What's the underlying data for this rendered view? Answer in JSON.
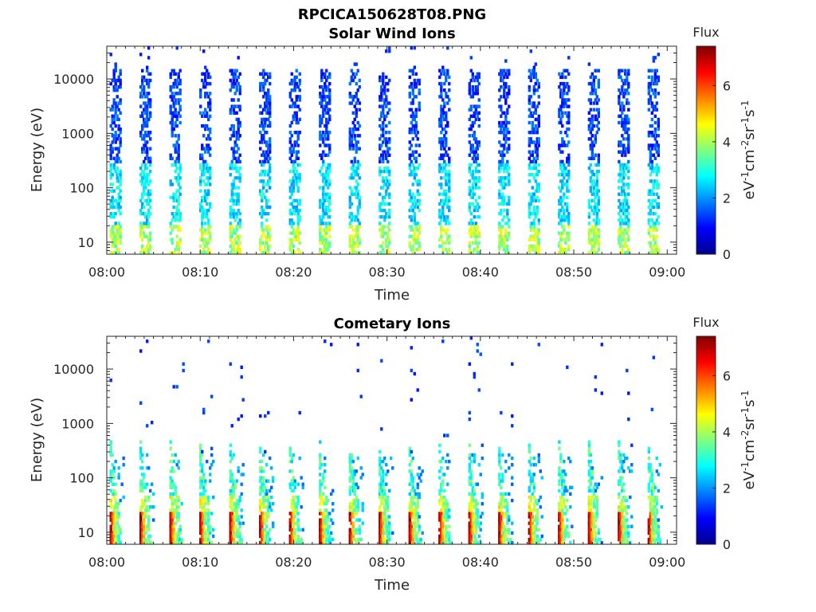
{
  "figure": {
    "title": "RPCICA150628T08.PNG"
  },
  "colorbar": {
    "title": "Flux",
    "label": "eV-1cm-2sr-1s-1",
    "label_parts": [
      {
        "t": "eV",
        "sup": false
      },
      {
        "t": "-1",
        "sup": true
      },
      {
        "t": "cm",
        "sup": false
      },
      {
        "t": "-2",
        "sup": true
      },
      {
        "t": "sr",
        "sup": false
      },
      {
        "t": "-1",
        "sup": true
      },
      {
        "t": "s",
        "sup": false
      },
      {
        "t": "-1",
        "sup": true
      }
    ],
    "range": [
      0,
      7.4
    ],
    "ticks": [
      "0",
      "2",
      "4",
      "6"
    ],
    "colormap": "jet"
  },
  "chart_data": [
    {
      "type": "heatmap",
      "title": "Solar Wind Ions",
      "xlabel": "Time",
      "ylabel": "Energy (eV)",
      "x_ticks": [
        "08:00",
        "08:10",
        "08:20",
        "08:30",
        "08:40",
        "08:50",
        "09:00"
      ],
      "y_ticks": [
        "10",
        "100",
        "1000",
        "10000"
      ],
      "y_scale": "log",
      "ylim_eV": [
        6,
        40000
      ],
      "xlim_min": [
        0,
        61
      ],
      "pattern": "solar_wind",
      "scan_period_min": 3.2,
      "scan_start_min": 0.3,
      "scans": 19,
      "value_summary": "periodic vertical bands; flux 4-5 near 6-20 eV, 2-3 at 20-300 eV, 1-2 at 300-15000 eV"
    },
    {
      "type": "heatmap",
      "title": "Cometary Ions",
      "xlabel": "Time",
      "ylabel": "Energy (eV)",
      "x_ticks": [
        "08:00",
        "08:10",
        "08:20",
        "08:30",
        "08:40",
        "08:50",
        "09:00"
      ],
      "y_ticks": [
        "10",
        "100",
        "1000",
        "10000"
      ],
      "y_scale": "log",
      "ylim_eV": [
        6,
        40000
      ],
      "xlim_min": [
        0,
        61
      ],
      "pattern": "cometary",
      "scan_period_min": 3.2,
      "scan_start_min": 0.3,
      "scans": 19,
      "value_summary": "periodic bursts; peak flux 6-7 near 6-20 eV, decaying trails 2-4 up to ~500 eV, sparse 1-2 above"
    }
  ]
}
